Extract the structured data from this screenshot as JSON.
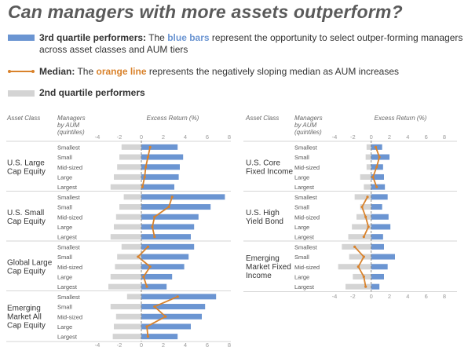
{
  "title": "Can managers with more assets outperform?",
  "legend": [
    {
      "key": "blue",
      "bold": "3rd quartile performers:",
      "pre": "The",
      "highlight": "blue bars",
      "rest": "represent the opportunity to select outper-forming managers across asset classes and AUM tiers"
    },
    {
      "key": "orange",
      "bold": "Median:",
      "pre": "The",
      "highlight": "orange line",
      "rest": "represents the negatively sloping median as AUM increases"
    },
    {
      "key": "gray",
      "bold": "2nd quartile performers",
      "pre": "",
      "highlight": "",
      "rest": ""
    }
  ],
  "colors": {
    "blue": "#6b95d2",
    "gray": "#d4d4d4",
    "orange": "#d9822b",
    "zero_line": "#888888"
  },
  "headers": {
    "asset_class": "Asset Class",
    "managers": [
      "Managers",
      "by AUM",
      "(quintiles)"
    ],
    "excess": "Excess Return (%)"
  },
  "chart_data": [
    {
      "type": "bar",
      "panel": "left",
      "xlim": [
        -4,
        8
      ],
      "xticks": [
        "-4",
        "-2",
        "0",
        "2",
        "4",
        "6",
        "8"
      ],
      "tiers": [
        "Smallest",
        "Small",
        "Mid-sized",
        "Large",
        "Largest"
      ],
      "groups": [
        {
          "label": [
            "U.S. Large",
            "Cap Equity"
          ],
          "q3": [
            3.3,
            3.8,
            3.5,
            3.4,
            3.0
          ],
          "q2": [
            -1.8,
            -2.0,
            -2.2,
            -2.5,
            -2.8
          ],
          "median": [
            0.8,
            0.6,
            0.4,
            0.3,
            0.1
          ]
        },
        {
          "label": [
            "U.S. Small",
            "Cap Equity"
          ],
          "q3": [
            7.6,
            6.3,
            5.2,
            4.8,
            4.5
          ],
          "q2": [
            -1.6,
            -2.0,
            -2.3,
            -2.5,
            -2.8
          ],
          "median": [
            2.8,
            2.5,
            1.2,
            1.0,
            1.2
          ]
        },
        {
          "label": [
            "Global Large",
            "Cap Equity"
          ],
          "q3": [
            4.8,
            4.3,
            3.9,
            2.8,
            2.3
          ],
          "q2": [
            -1.8,
            -2.2,
            -2.4,
            -2.8,
            -3.0
          ],
          "median": [
            0.6,
            -0.3,
            0.8,
            0.2,
            0.5
          ]
        },
        {
          "label": [
            "Emerging",
            "Market All",
            "Cap Equity"
          ],
          "q3": [
            6.8,
            5.8,
            5.5,
            4.5,
            3.3
          ],
          "q2": [
            -1.3,
            -2.8,
            -2.3,
            -2.5,
            -2.6
          ],
          "median": [
            3.3,
            1.2,
            2.2,
            0.5,
            0.6
          ]
        }
      ]
    },
    {
      "type": "bar",
      "panel": "right",
      "xlim": [
        -4,
        8
      ],
      "xticks": [
        "-4",
        "-2",
        "0",
        "2",
        "4",
        "6",
        "8"
      ],
      "tiers": [
        "Smallest",
        "Small",
        "Mid-sized",
        "Large",
        "Largest"
      ],
      "groups": [
        {
          "label": [
            "U.S. Core",
            "Fixed Income"
          ],
          "q3": [
            1.2,
            2.0,
            1.3,
            1.4,
            1.5
          ],
          "q2": [
            -0.5,
            -0.6,
            -0.5,
            -1.2,
            -0.8
          ],
          "median": [
            0.5,
            0.9,
            0.6,
            0.2,
            0.6
          ]
        },
        {
          "label": [
            "U.S. High",
            "Yield Bond"
          ],
          "q3": [
            1.8,
            1.2,
            1.9,
            2.1,
            1.3
          ],
          "q2": [
            -1.8,
            -1.2,
            -1.6,
            -2.1,
            -2.5
          ],
          "median": [
            -0.4,
            -1.0,
            -0.6,
            -0.3,
            -0.8
          ]
        },
        {
          "label": [
            "Emerging",
            "Market Fixed",
            "Income"
          ],
          "q3": [
            1.4,
            2.6,
            1.8,
            1.4,
            0.9
          ],
          "q2": [
            -3.2,
            -2.4,
            -3.6,
            -2.0,
            -2.8
          ],
          "median": [
            -1.8,
            -0.8,
            -1.4,
            -0.8,
            -0.6
          ]
        }
      ]
    }
  ]
}
